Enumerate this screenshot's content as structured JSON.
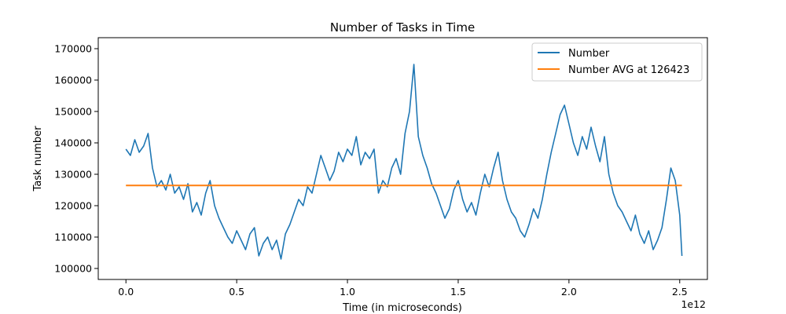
{
  "chart_data": {
    "type": "line",
    "title": "Number of Tasks in Time",
    "xlabel": "Time (in microseconds)",
    "ylabel": "Task number",
    "x_offset_label": "1e12",
    "xlim": [
      -0.125,
      2.625
    ],
    "ylim": [
      96500,
      173500
    ],
    "x_ticks": [
      0.0,
      0.5,
      1.0,
      1.5,
      2.0,
      2.5
    ],
    "x_tick_labels": [
      "0.0",
      "0.5",
      "1.0",
      "1.5",
      "2.0",
      "2.5"
    ],
    "y_ticks": [
      100000,
      110000,
      120000,
      130000,
      140000,
      150000,
      160000,
      170000
    ],
    "y_tick_labels": [
      "100000",
      "110000",
      "120000",
      "130000",
      "140000",
      "150000",
      "160000",
      "170000"
    ],
    "grid": false,
    "legend_position": "top-right",
    "series": [
      {
        "name": "Number",
        "color": "#1f77b4",
        "x": [
          0.0,
          0.02,
          0.04,
          0.06,
          0.08,
          0.1,
          0.12,
          0.14,
          0.16,
          0.18,
          0.2,
          0.22,
          0.24,
          0.26,
          0.28,
          0.3,
          0.32,
          0.34,
          0.36,
          0.38,
          0.4,
          0.42,
          0.44,
          0.46,
          0.48,
          0.5,
          0.52,
          0.54,
          0.56,
          0.58,
          0.6,
          0.62,
          0.64,
          0.66,
          0.68,
          0.7,
          0.72,
          0.74,
          0.76,
          0.78,
          0.8,
          0.82,
          0.84,
          0.86,
          0.88,
          0.9,
          0.92,
          0.94,
          0.96,
          0.98,
          1.0,
          1.02,
          1.04,
          1.06,
          1.08,
          1.1,
          1.12,
          1.14,
          1.16,
          1.18,
          1.2,
          1.22,
          1.24,
          1.26,
          1.28,
          1.3,
          1.32,
          1.34,
          1.36,
          1.38,
          1.4,
          1.42,
          1.44,
          1.46,
          1.48,
          1.5,
          1.52,
          1.54,
          1.56,
          1.58,
          1.6,
          1.62,
          1.64,
          1.66,
          1.68,
          1.7,
          1.72,
          1.74,
          1.76,
          1.78,
          1.8,
          1.82,
          1.84,
          1.86,
          1.88,
          1.9,
          1.92,
          1.94,
          1.96,
          1.98,
          2.0,
          2.02,
          2.04,
          2.06,
          2.08,
          2.1,
          2.12,
          2.14,
          2.16,
          2.18,
          2.2,
          2.22,
          2.24,
          2.26,
          2.28,
          2.3,
          2.32,
          2.34,
          2.36,
          2.38,
          2.4,
          2.42,
          2.44,
          2.46,
          2.48,
          2.5,
          2.51
        ],
        "y": [
          138000,
          136000,
          141000,
          137000,
          139000,
          143000,
          132000,
          126000,
          128000,
          125000,
          130000,
          124000,
          126000,
          122000,
          127000,
          118000,
          121000,
          117000,
          124000,
          128000,
          120000,
          116000,
          113000,
          110000,
          108000,
          112000,
          109000,
          106000,
          111000,
          113000,
          104000,
          108000,
          110000,
          106000,
          109000,
          103000,
          111000,
          114000,
          118000,
          122000,
          120000,
          126000,
          124000,
          130000,
          136000,
          132000,
          128000,
          131000,
          137000,
          134000,
          138000,
          136000,
          142000,
          133000,
          137000,
          135000,
          138000,
          124000,
          128000,
          126000,
          132000,
          135000,
          130000,
          143000,
          150000,
          165000,
          142000,
          136000,
          132000,
          127000,
          124000,
          120000,
          116000,
          119000,
          125000,
          128000,
          122000,
          118000,
          121000,
          117000,
          124000,
          130000,
          126000,
          132000,
          137000,
          128000,
          122000,
          118000,
          116000,
          112000,
          110000,
          114000,
          119000,
          116000,
          122000,
          130000,
          137000,
          143000,
          149000,
          152000,
          146000,
          140000,
          136000,
          142000,
          138000,
          145000,
          139000,
          134000,
          142000,
          130000,
          124000,
          120000,
          118000,
          115000,
          112000,
          117000,
          111000,
          108000,
          112000,
          106000,
          109000,
          113000,
          122000,
          132000,
          128000,
          117000,
          104000
        ]
      },
      {
        "name": "Number AVG at 126423",
        "color": "#ff7f0e",
        "x": [
          0.0,
          2.51
        ],
        "y": [
          126423,
          126423
        ]
      }
    ]
  }
}
